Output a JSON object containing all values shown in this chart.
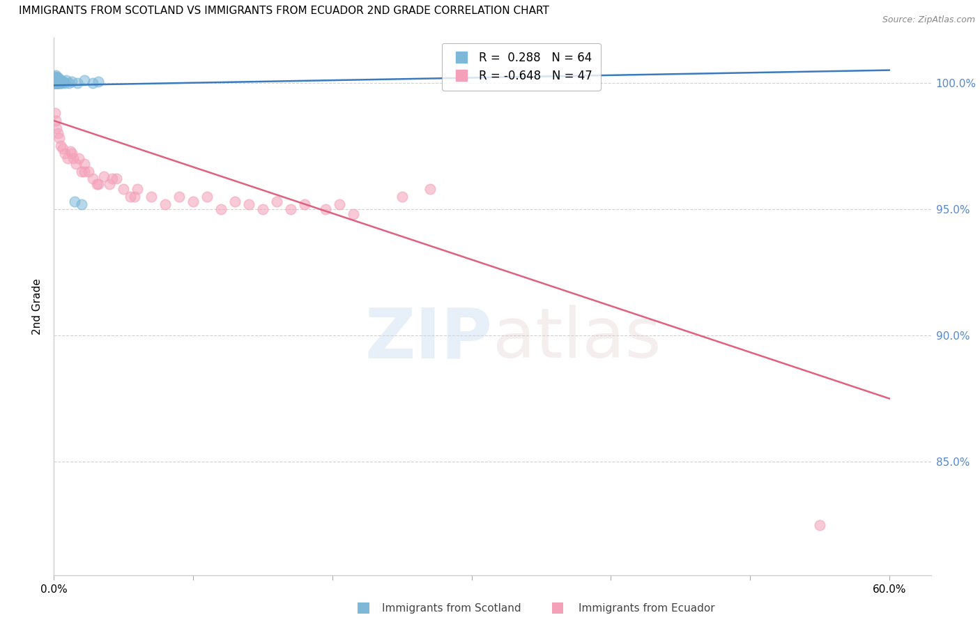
{
  "title": "IMMIGRANTS FROM SCOTLAND VS IMMIGRANTS FROM ECUADOR 2ND GRADE CORRELATION CHART",
  "source": "Source: ZipAtlas.com",
  "ylabel": "2nd Grade",
  "xlabel_vals": [
    0.0,
    10.0,
    20.0,
    30.0,
    40.0,
    50.0,
    60.0
  ],
  "xlabel_show": [
    0.0,
    60.0
  ],
  "ylabel_vals": [
    85.0,
    90.0,
    95.0,
    100.0
  ],
  "xlim": [
    0.0,
    63.0
  ],
  "ylim": [
    80.5,
    101.8
  ],
  "scotland_R": 0.288,
  "scotland_N": 64,
  "ecuador_R": -0.648,
  "ecuador_N": 47,
  "scotland_color": "#7db8d9",
  "ecuador_color": "#f4a0b8",
  "scotland_line_color": "#3a7abf",
  "ecuador_line_color": "#e06080",
  "right_axis_color": "#5588cc",
  "grid_color": "#cccccc",
  "background_color": "#ffffff",
  "legend_scotland_label": "Immigrants from Scotland",
  "legend_ecuador_label": "Immigrants from Ecuador",
  "scotland_scatter_x": [
    0.05,
    0.06,
    0.07,
    0.08,
    0.08,
    0.09,
    0.09,
    0.1,
    0.1,
    0.1,
    0.1,
    0.11,
    0.11,
    0.12,
    0.12,
    0.12,
    0.13,
    0.13,
    0.14,
    0.14,
    0.15,
    0.15,
    0.15,
    0.16,
    0.16,
    0.17,
    0.17,
    0.18,
    0.18,
    0.19,
    0.19,
    0.2,
    0.2,
    0.21,
    0.22,
    0.22,
    0.23,
    0.24,
    0.25,
    0.26,
    0.27,
    0.28,
    0.29,
    0.3,
    0.32,
    0.35,
    0.38,
    0.4,
    0.43,
    0.46,
    0.5,
    0.55,
    0.6,
    0.7,
    0.8,
    0.9,
    1.1,
    1.3,
    1.7,
    2.2,
    2.8,
    3.2,
    1.5,
    2.0
  ],
  "scotland_scatter_y": [
    100.0,
    100.1,
    100.05,
    100.0,
    100.15,
    100.0,
    100.2,
    100.0,
    100.1,
    100.25,
    100.05,
    100.0,
    100.1,
    100.2,
    100.0,
    100.15,
    100.0,
    100.1,
    100.05,
    100.2,
    100.0,
    100.1,
    100.3,
    100.0,
    100.15,
    100.0,
    100.1,
    100.0,
    100.2,
    100.0,
    100.1,
    100.0,
    100.05,
    100.0,
    100.1,
    100.2,
    100.0,
    100.1,
    100.0,
    100.15,
    100.0,
    100.1,
    100.0,
    100.2,
    100.0,
    100.1,
    100.05,
    100.0,
    100.1,
    100.0,
    100.0,
    100.1,
    100.0,
    100.05,
    100.0,
    100.1,
    100.0,
    100.05,
    100.0,
    100.1,
    100.0,
    100.05,
    95.3,
    95.2
  ],
  "ecuador_scatter_x": [
    0.1,
    0.15,
    0.2,
    0.28,
    0.38,
    0.5,
    0.65,
    0.8,
    1.0,
    1.2,
    1.4,
    1.6,
    1.8,
    2.0,
    2.2,
    2.5,
    2.8,
    3.2,
    3.6,
    4.0,
    4.5,
    5.0,
    5.5,
    6.0,
    7.0,
    8.0,
    9.0,
    10.0,
    11.0,
    12.0,
    13.0,
    14.0,
    15.0,
    16.0,
    17.0,
    18.0,
    19.5,
    20.5,
    21.5,
    25.0,
    27.0,
    1.3,
    2.2,
    3.1,
    4.2,
    5.8,
    55.0
  ],
  "ecuador_scatter_y": [
    98.8,
    98.5,
    98.2,
    98.0,
    97.8,
    97.5,
    97.4,
    97.2,
    97.0,
    97.3,
    97.0,
    96.8,
    97.0,
    96.5,
    96.8,
    96.5,
    96.2,
    96.0,
    96.3,
    96.0,
    96.2,
    95.8,
    95.5,
    95.8,
    95.5,
    95.2,
    95.5,
    95.3,
    95.5,
    95.0,
    95.3,
    95.2,
    95.0,
    95.3,
    95.0,
    95.2,
    95.0,
    95.2,
    94.8,
    95.5,
    95.8,
    97.2,
    96.5,
    96.0,
    96.2,
    95.5,
    82.5
  ],
  "scotland_trendline_x": [
    0.0,
    60.0
  ],
  "scotland_trendline_y": [
    99.9,
    100.5
  ],
  "ecuador_trendline_x": [
    0.0,
    60.0
  ],
  "ecuador_trendline_y": [
    98.5,
    87.5
  ]
}
